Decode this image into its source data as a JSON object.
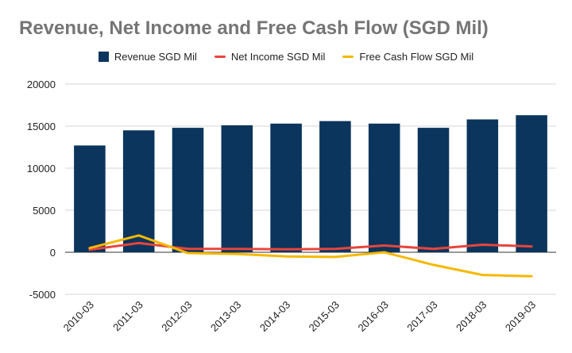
{
  "chart_data": {
    "type": "bar",
    "title": "Revenue, Net Income and Free Cash Flow (SGD Mil)",
    "categories": [
      "2010-03",
      "2011-03",
      "2012-03",
      "2013-03",
      "2014-03",
      "2015-03",
      "2016-03",
      "2017-03",
      "2018-03",
      "2019-03"
    ],
    "series": [
      {
        "name": "Revenue SGD Mil",
        "kind": "bar",
        "color": "#0b355d",
        "values": [
          12700,
          14500,
          14800,
          15100,
          15300,
          15600,
          15300,
          14800,
          15800,
          16300
        ]
      },
      {
        "name": "Net Income SGD Mil",
        "kind": "line",
        "color": "#e8453c",
        "values": [
          300,
          1100,
          400,
          400,
          350,
          400,
          800,
          400,
          900,
          700
        ]
      },
      {
        "name": "Free Cash Flow SGD Mil",
        "kind": "line",
        "color": "#f5b800",
        "values": [
          500,
          2000,
          -100,
          -200,
          -500,
          -550,
          0,
          -1500,
          -2700,
          -2850
        ]
      }
    ],
    "y_ticks": [
      "20000",
      "15000",
      "10000",
      "5000",
      "0",
      "-5000"
    ],
    "ylim": [
      -5000,
      20000
    ],
    "xlabel": "",
    "ylabel": "",
    "grid": true,
    "legend_position": "top"
  }
}
